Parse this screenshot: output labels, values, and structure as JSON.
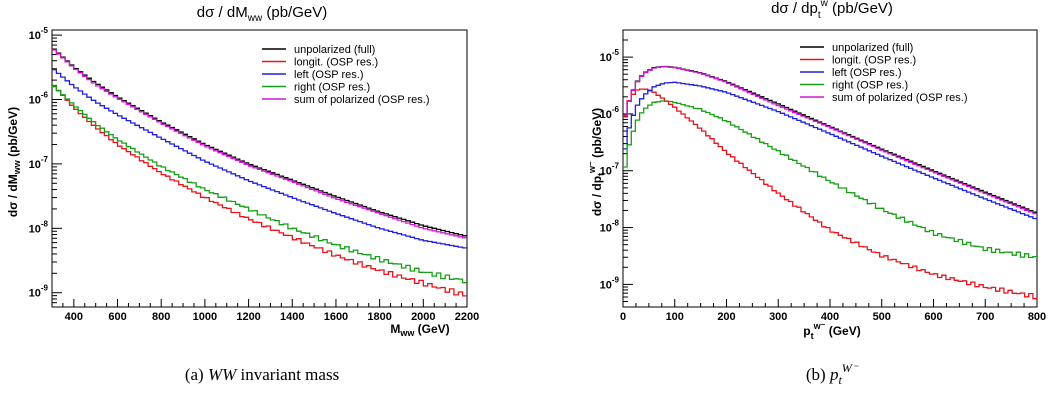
{
  "legend_entries": [
    {
      "label": "unpolarized (full)",
      "color": "#000000"
    },
    {
      "label": "longit. (OSP res.)",
      "color": "#e8141c"
    },
    {
      "label": "left (OSP res.)",
      "color": "#1f1fe0"
    },
    {
      "label": "right (OSP res.)",
      "color": "#16a016"
    },
    {
      "label": "sum of polarized (OSP res.)",
      "color": "#d21ad2"
    }
  ],
  "chart_data": [
    {
      "type": "line",
      "title": "dσ / dM_ww  (pb/GeV)",
      "xlabel": "M_ww (GeV)",
      "ylabel": "dσ / dM_ww (pb/GeV)",
      "caption": "(a)  WW invariant mass",
      "xlim": [
        300,
        2200
      ],
      "ylim": [
        6e-10,
        1.2e-05
      ],
      "log_y": true,
      "x_ticks": [
        400,
        600,
        800,
        1000,
        1200,
        1400,
        1600,
        1800,
        2000,
        2200
      ],
      "y_ticks": [
        {
          "value": 1e-06,
          "exp": "-6"
        },
        {
          "value": 1e-07,
          "exp": "-7"
        },
        {
          "value": 1e-08,
          "exp": "-8"
        },
        {
          "value": 1e-09,
          "exp": "-9"
        }
      ],
      "y_top_label": {
        "value": 1e-05,
        "exp": "-5"
      },
      "legend_position": "top-right",
      "x": [
        300,
        400,
        500,
        600,
        800,
        1000,
        1200,
        1400,
        1600,
        1800,
        2000,
        2200
      ],
      "series": [
        {
          "name": "unpolarized (full)",
          "color": "#000000",
          "values": [
            6.5e-06,
            3.2e-06,
            1.8e-06,
            1.1e-06,
            4.5e-07,
            2e-07,
            1e-07,
            5.6e-08,
            3.1e-08,
            1.8e-08,
            1.1e-08,
            7.5e-09
          ]
        },
        {
          "name": "longit. (OSP res.)",
          "color": "#e8141c",
          "values": [
            1.8e-06,
            7.5e-07,
            3.7e-07,
            2e-07,
            7.2e-08,
            3e-08,
            1.4e-08,
            7.2e-09,
            3.8e-09,
            2.2e-09,
            1.4e-09,
            9e-10
          ]
        },
        {
          "name": "left (OSP res.)",
          "color": "#1f1fe0",
          "values": [
            3.1e-06,
            1.6e-06,
            9.2e-07,
            5.8e-07,
            2.5e-07,
            1.1e-07,
            5.5e-08,
            3e-08,
            1.7e-08,
            1e-08,
            6.5e-09,
            4.9e-09
          ]
        },
        {
          "name": "right (OSP res.)",
          "color": "#16a016",
          "values": [
            1.7e-06,
            8.2e-07,
            4.2e-07,
            2.4e-07,
            9.1e-08,
            4e-08,
            2e-08,
            1e-08,
            5.5e-09,
            3.3e-09,
            2.1e-09,
            1.5e-09
          ]
        },
        {
          "name": "sum of polarized (OSP res.)",
          "color": "#d21ad2",
          "values": [
            6.3e-06,
            3.1e-06,
            1.7e-06,
            1.05e-06,
            4.3e-07,
            1.9e-07,
            9.5e-08,
            5.3e-08,
            2.9e-08,
            1.7e-08,
            1e-08,
            7e-09
          ]
        }
      ]
    },
    {
      "type": "line",
      "title": "dσ / dp_t^w  (pb/GeV)",
      "xlabel": "p_t^w- (GeV)",
      "ylabel": "dσ / dp_t^w- (pb/GeV)",
      "caption": "(b)  p_t^W-",
      "xlim": [
        0,
        800
      ],
      "ylim": [
        4e-10,
        3e-05
      ],
      "log_y": true,
      "x_ticks": [
        0,
        100,
        200,
        300,
        400,
        500,
        600,
        700,
        800
      ],
      "y_ticks": [
        {
          "value": 1e-05,
          "exp": "-5"
        },
        {
          "value": 1e-06,
          "exp": "-6"
        },
        {
          "value": 1e-07,
          "exp": "-7"
        },
        {
          "value": 1e-08,
          "exp": "-8"
        },
        {
          "value": 1e-09,
          "exp": "-9"
        }
      ],
      "legend_position": "top-right",
      "x": [
        0,
        10,
        25,
        40,
        60,
        80,
        100,
        150,
        200,
        300,
        400,
        500,
        600,
        700,
        800
      ],
      "series": [
        {
          "name": "unpolarized (full)",
          "color": "#000000",
          "values": [
            7e-07,
            1.5e-06,
            3.5e-06,
            5.2e-06,
            6.5e-06,
            6.9e-06,
            6.6e-06,
            5.3e-06,
            3.7e-06,
            1.5e-06,
            6e-07,
            2.4e-07,
            1e-07,
            4.2e-08,
            1.8e-08
          ]
        },
        {
          "name": "longit. (OSP res.)",
          "color": "#e8141c",
          "values": [
            6e-07,
            1.6e-06,
            2.6e-06,
            2.8e-06,
            2.4e-06,
            1.8e-06,
            1.3e-06,
            5.5e-07,
            2.1e-07,
            4e-08,
            9e-09,
            3.2e-09,
            1.5e-09,
            9e-10,
            6e-10
          ]
        },
        {
          "name": "left (OSP res.)",
          "color": "#1f1fe0",
          "values": [
            1.5e-07,
            5e-07,
            1.3e-06,
            2.1e-06,
            3e-06,
            3.5e-06,
            3.6e-06,
            3.1e-06,
            2.4e-06,
            1.1e-06,
            4.5e-07,
            1.8e-07,
            7.5e-08,
            3.2e-08,
            1.4e-08
          ]
        },
        {
          "name": "right (OSP res.)",
          "color": "#16a016",
          "values": [
            7e-08,
            2.5e-07,
            7e-07,
            1.2e-06,
            1.6e-06,
            1.7e-06,
            1.6e-06,
            1.2e-06,
            7.5e-07,
            2.2e-07,
            6.5e-08,
            2.1e-08,
            8e-09,
            4.2e-09,
            3e-09
          ]
        },
        {
          "name": "sum of polarized (OSP res.)",
          "color": "#d21ad2",
          "values": [
            7e-07,
            1.5e-06,
            3.4e-06,
            5.1e-06,
            6.4e-06,
            6.8e-06,
            6.5e-06,
            5.2e-06,
            3.6e-06,
            1.4e-06,
            5.8e-07,
            2.3e-07,
            9.5e-08,
            4e-08,
            1.7e-08
          ]
        }
      ]
    }
  ]
}
